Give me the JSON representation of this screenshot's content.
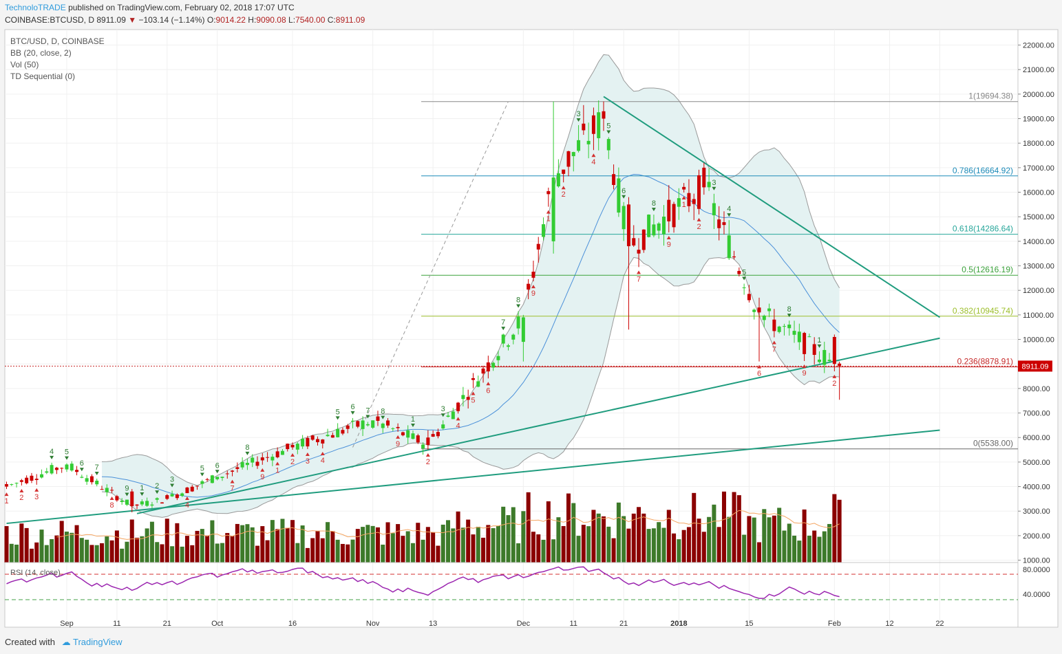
{
  "header": {
    "publisher": "TechnoloTRADE",
    "published_text": "published on TradingView.com, February 02, 2018 17:07 UTC",
    "symbol": "COINBASE:BTCUSD, D",
    "last": "8911.09",
    "change": "−103.14 (−1.14%)",
    "open_label": "O:",
    "open": "9014.22",
    "high_label": "H:",
    "high": "9090.08",
    "low_label": "L:",
    "low": "7540.00",
    "close_label": "C:",
    "close": "8911.09"
  },
  "legend": {
    "main": "BTC/USD, D, COINBASE",
    "bb": "BB (20, close, 2)",
    "vol": "Vol (50)",
    "td": "TD Sequential (0)",
    "rsi": "RSI (14, close)"
  },
  "footer": {
    "created_with": "Created with",
    "brand": "TradingView"
  },
  "colors": {
    "up": "#33cc33",
    "down": "#cc0000",
    "vol_up": "#3d7a2a",
    "vol_down": "#8b0000",
    "trendline": "#1f9c7e",
    "bb_fill": "#e4f2f2",
    "bb_line": "#999999",
    "bb_basis": "#4a90d9",
    "rsi_line": "#9c27b0",
    "vol_ma": "#f4a460",
    "price_tag": "#cc0000"
  },
  "chart_data": {
    "type": "candlestick",
    "title": "BTC/USD, D, COINBASE",
    "y_axis": {
      "range": [
        1000,
        22500
      ],
      "ticks": [
        22000,
        21000,
        20000,
        19000,
        18000,
        17000,
        16000,
        15000,
        14000,
        13000,
        12000,
        11000,
        10000,
        9000,
        8000,
        7000,
        6000,
        5000,
        4000,
        3000,
        2000,
        1000
      ],
      "tick_labels": [
        "22000.00",
        "21000.00",
        "20000.00",
        "19000.00",
        "18000.00",
        "17000.00",
        "16000.00",
        "15000.00",
        "14000.00",
        "13000.00",
        "12000.00",
        "11000.00",
        "10000.00",
        "9000.00",
        "8000.00",
        "7000.00",
        "6000.00",
        "5000.00",
        "4000.00",
        "3000.00",
        "2000.00",
        "1000.00"
      ]
    },
    "rsi_axis": {
      "ticks": [
        80,
        40
      ],
      "tick_labels": [
        "80.0000",
        "40.0000"
      ],
      "levels": [
        70,
        30
      ]
    },
    "x_axis": {
      "ticks": [
        {
          "date": "2017-09-01",
          "label": "Sep"
        },
        {
          "date": "2017-09-11",
          "label": "11"
        },
        {
          "date": "2017-09-21",
          "label": "21"
        },
        {
          "date": "2017-10-01",
          "label": "Oct"
        },
        {
          "date": "2017-10-16",
          "label": "16"
        },
        {
          "date": "2017-11-01",
          "label": "Nov"
        },
        {
          "date": "2017-11-13",
          "label": "13"
        },
        {
          "date": "2017-12-01",
          "label": "Dec"
        },
        {
          "date": "2017-12-11",
          "label": "11"
        },
        {
          "date": "2017-12-21",
          "label": "21"
        },
        {
          "date": "2018-01-01",
          "label": "2018"
        },
        {
          "date": "2018-01-15",
          "label": "15"
        },
        {
          "date": "2018-02-01",
          "label": "Feb"
        },
        {
          "date": "2018-02-12",
          "label": "12"
        },
        {
          "date": "2018-02-22",
          "label": "22"
        }
      ]
    },
    "last_price_tag": "8911.09",
    "fibonacci": [
      {
        "label": "1(19694.38)",
        "value": 19694.38
      },
      {
        "label": "0.786(16664.92)",
        "value": 16664.92
      },
      {
        "label": "0.618(14286.64)",
        "value": 14286.64
      },
      {
        "label": "0.5(12616.19)",
        "value": 12616.19
      },
      {
        "label": "0.382(10945.74)",
        "value": 10945.74
      },
      {
        "label": "0.236(8878.91)",
        "value": 8878.91
      },
      {
        "label": "0(5538.00)",
        "value": 5538.0
      }
    ],
    "trendlines": [
      {
        "from": [
          "2017-08-20",
          2500
        ],
        "to": [
          "2018-02-22",
          6300
        ]
      },
      {
        "from": [
          "2017-09-15",
          2900
        ],
        "to": [
          "2018-02-22",
          10050
        ]
      },
      {
        "from": [
          "2017-12-17",
          19900
        ],
        "to": [
          "2018-02-22",
          10900
        ]
      }
    ],
    "dashed_projection": {
      "from": [
        "2017-10-28",
        5600
      ],
      "to": [
        "2017-11-28",
        19700
      ]
    },
    "ohlc_daily_approx": [
      {
        "date": "2017-08-20",
        "o": 4100,
        "h": 4200,
        "c": 4000,
        "l": 3900
      },
      {
        "date": "2017-09-01",
        "o": 4700,
        "h": 4950,
        "c": 4900,
        "l": 4600
      },
      {
        "date": "2017-09-14",
        "o": 3800,
        "h": 3900,
        "c": 3200,
        "l": 2950
      },
      {
        "date": "2017-09-21",
        "o": 3650,
        "h": 3700,
        "c": 3500,
        "l": 3450
      },
      {
        "date": "2017-10-01",
        "o": 4300,
        "h": 4400,
        "c": 4400,
        "l": 4250
      },
      {
        "date": "2017-10-16",
        "o": 5700,
        "h": 5800,
        "c": 5600,
        "l": 5500
      },
      {
        "date": "2017-11-01",
        "o": 6400,
        "h": 6700,
        "c": 6700,
        "l": 6350
      },
      {
        "date": "2017-11-12",
        "o": 6000,
        "h": 6300,
        "c": 5700,
        "l": 5500
      },
      {
        "date": "2017-12-01",
        "o": 9900,
        "h": 11000,
        "c": 10900,
        "l": 9100
      },
      {
        "date": "2017-12-07",
        "o": 14000,
        "h": 19700,
        "c": 16600,
        "l": 13500
      },
      {
        "date": "2017-12-17",
        "o": 19300,
        "h": 19700,
        "c": 19000,
        "l": 18500
      },
      {
        "date": "2017-12-22",
        "o": 15500,
        "h": 15800,
        "c": 13800,
        "l": 10400
      },
      {
        "date": "2018-01-06",
        "o": 17000,
        "h": 17200,
        "c": 16200,
        "l": 15900
      },
      {
        "date": "2018-01-17",
        "o": 11300,
        "h": 11700,
        "c": 11100,
        "l": 9100
      },
      {
        "date": "2018-02-01",
        "o": 10100,
        "h": 10200,
        "c": 9000,
        "l": 8700
      },
      {
        "date": "2018-02-02",
        "o": 9014.22,
        "h": 9090.08,
        "c": 8911.09,
        "l": 7540
      }
    ]
  }
}
